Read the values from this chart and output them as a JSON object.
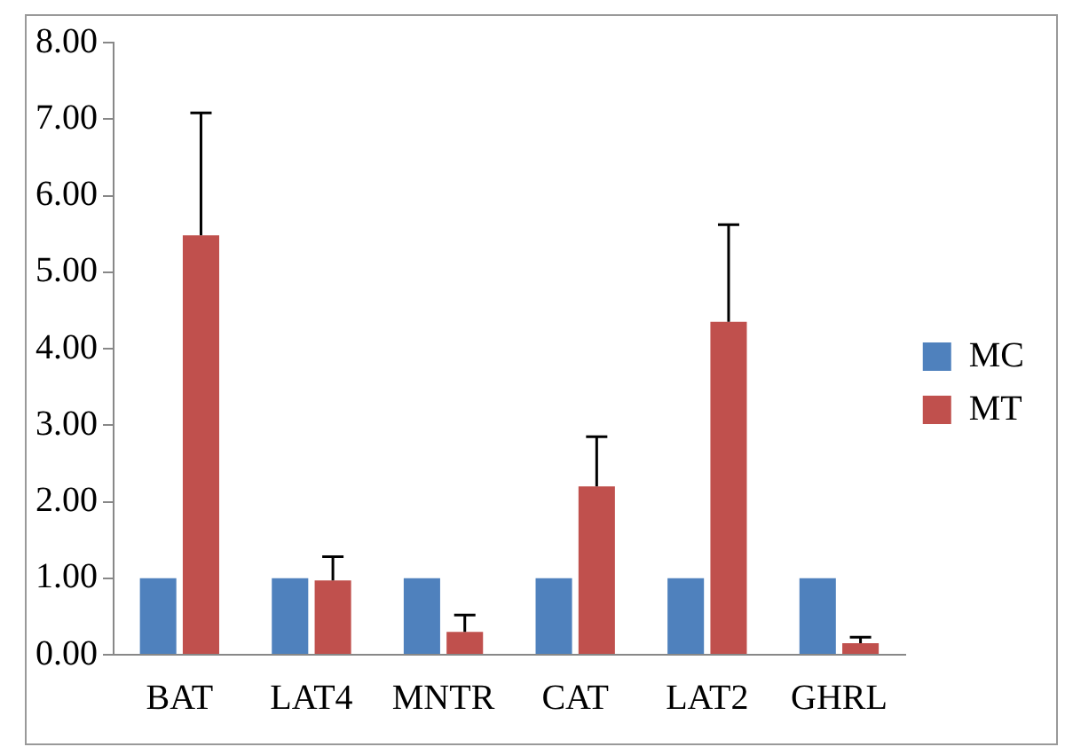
{
  "chart_data": {
    "type": "bar",
    "categories": [
      "BAT",
      "LAT4",
      "MNTR",
      "CAT",
      "LAT2",
      "GHRL"
    ],
    "series": [
      {
        "name": "MC",
        "color": "#4f81bd",
        "values": [
          1.0,
          1.0,
          1.0,
          1.0,
          1.0,
          1.0
        ]
      },
      {
        "name": "MT",
        "color": "#c0504d",
        "values": [
          5.48,
          0.97,
          0.3,
          2.2,
          4.35,
          0.15
        ],
        "errors": [
          [
            5.48,
            7.08
          ],
          [
            0.97,
            1.28
          ],
          [
            0.3,
            0.52
          ],
          [
            2.2,
            2.85
          ],
          [
            4.35,
            5.62
          ],
          [
            0.15,
            0.23
          ]
        ]
      }
    ],
    "ylim": [
      0,
      8
    ],
    "yticks": [
      {
        "value": 0,
        "label": "0.00"
      },
      {
        "value": 1,
        "label": "1.00"
      },
      {
        "value": 2,
        "label": "2.00"
      },
      {
        "value": 3,
        "label": "3.00"
      },
      {
        "value": 4,
        "label": "4.00"
      },
      {
        "value": 5,
        "label": "5.00"
      },
      {
        "value": 6,
        "label": "6.00"
      },
      {
        "value": 7,
        "label": "7.00"
      },
      {
        "value": 8,
        "label": "8.00"
      }
    ],
    "grid": false,
    "legend": "right"
  }
}
